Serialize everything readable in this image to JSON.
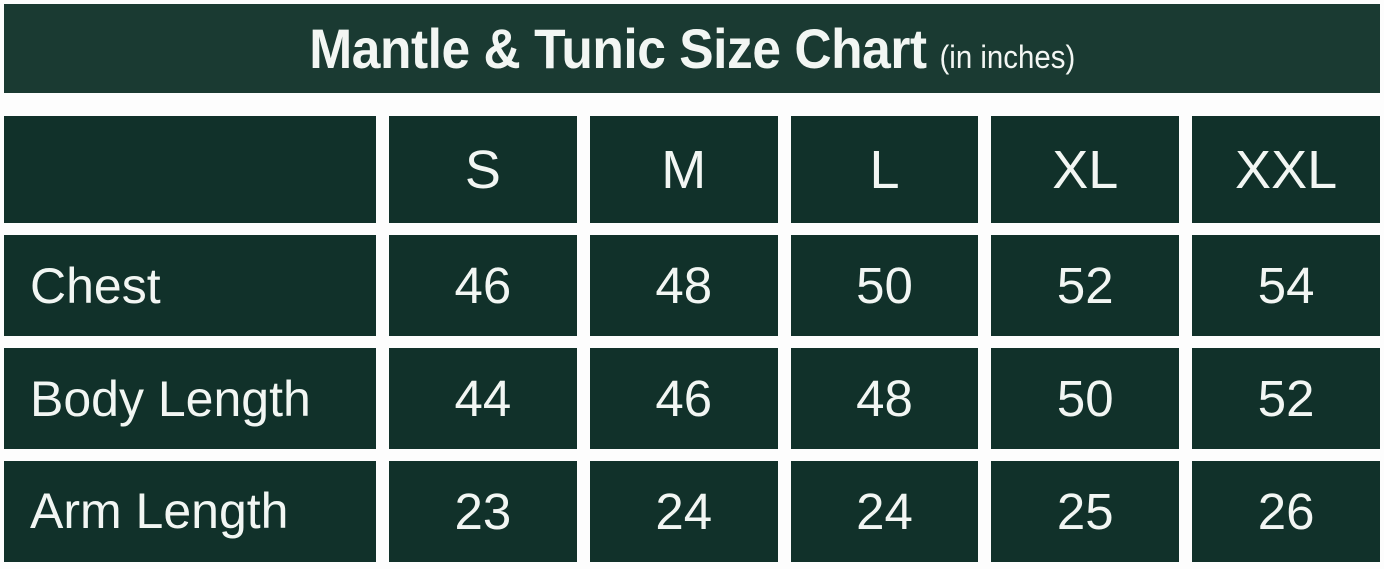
{
  "title": {
    "main": "Mantle & Tunic Size Chart",
    "unit": "(in inches)"
  },
  "colors": {
    "title_bar_bg": "#1a3a32",
    "cell_bg": "#11312a",
    "text": "#f2f6f3",
    "background": "#fdfdfd"
  },
  "chart_data": {
    "type": "table",
    "title": "Mantle & Tunic Size Chart",
    "unit_note": "(in inches)",
    "columns": [
      "",
      "S",
      "M",
      "L",
      "XL",
      "XXL"
    ],
    "rows": [
      {
        "label": "Chest",
        "values": [
          "46",
          "48",
          "50",
          "52",
          "54"
        ]
      },
      {
        "label": "Body Length",
        "values": [
          "44",
          "46",
          "48",
          "50",
          "52"
        ]
      },
      {
        "label": "Arm Length",
        "values": [
          "23",
          "24",
          "24",
          "25",
          "26"
        ]
      }
    ]
  }
}
